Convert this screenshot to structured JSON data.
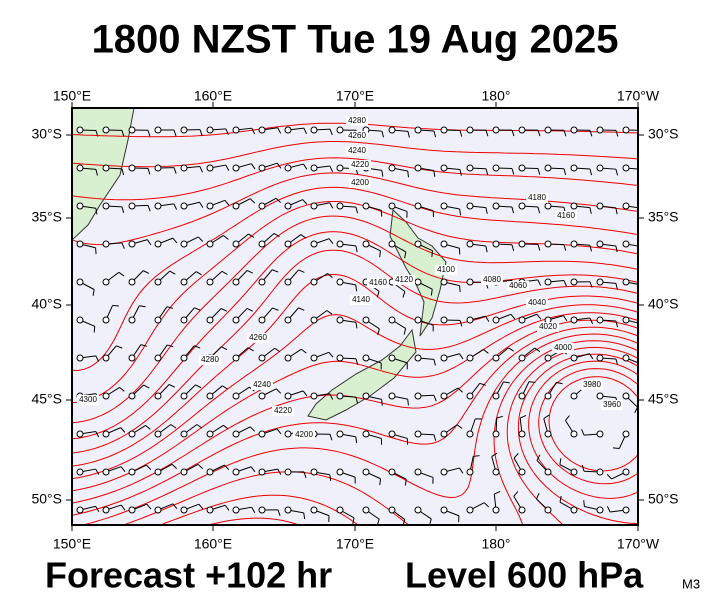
{
  "header": {
    "title": "1800 NZST Tue 19 Aug 2025"
  },
  "footer": {
    "forecast": "Forecast +102 hr",
    "level": "Level 600 hPa",
    "code": "M3"
  },
  "map": {
    "longitude_labels": [
      "150°E",
      "160°E",
      "170°E",
      "180°",
      "170°W"
    ],
    "latitude_labels": [
      "30°S",
      "35°S",
      "40°S",
      "45°S",
      "50°S"
    ],
    "contour_labels": [
      "4280",
      "4260",
      "4240",
      "4220",
      "4200",
      "4180",
      "4160",
      "4060",
      "4040",
      "4020",
      "4000",
      "3980",
      "3960",
      "4300",
      "4280",
      "4260",
      "4240",
      "4220",
      "4200",
      "4160",
      "4140",
      "4120",
      "4100",
      "4080"
    ]
  }
}
